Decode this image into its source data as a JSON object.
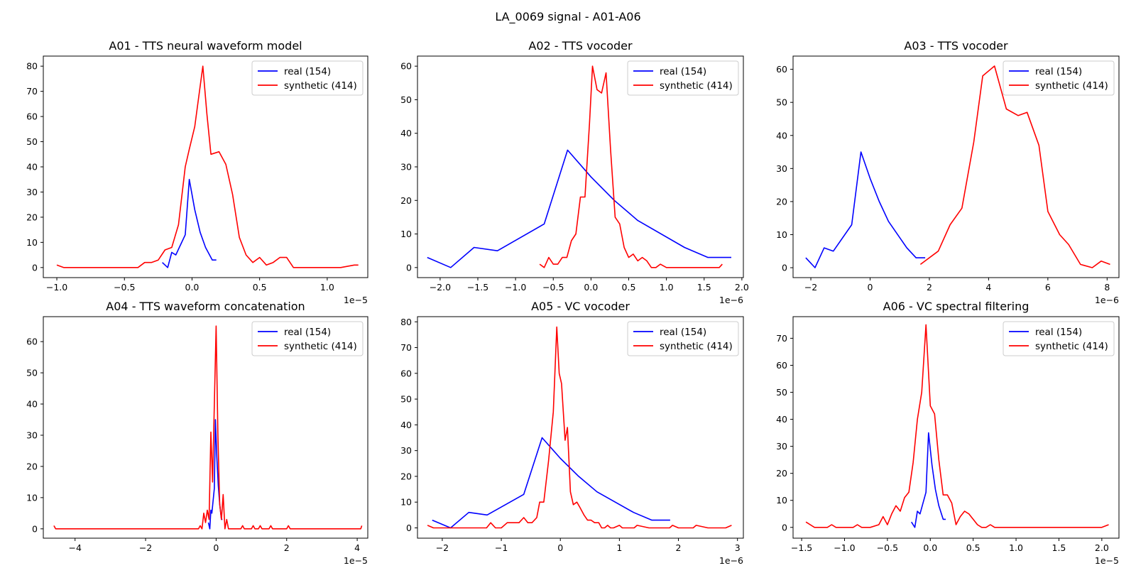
{
  "suptitle": "LA_0069 signal - A01-A06",
  "colors": {
    "real": "#0000ff",
    "synthetic": "#ff0000"
  },
  "chart_data": [
    {
      "type": "line",
      "title": "A01 - TTS neural waveform model",
      "offset_text": "1e−5",
      "xlim": [
        -1.1,
        1.3
      ],
      "ylim": [
        -4,
        84
      ],
      "xticks": [
        -1.0,
        -0.5,
        0.0,
        0.5,
        1.0
      ],
      "xticklabels": [
        "−1.0",
        "−0.5",
        "0.0",
        "0.5",
        "1.0"
      ],
      "yticks": [
        0,
        10,
        20,
        30,
        40,
        50,
        60,
        70,
        80
      ],
      "legend": "upper right",
      "series": [
        {
          "name": "real (154)",
          "color": "#0000ff",
          "x": [
            -0.22,
            -0.18,
            -0.15,
            -0.12,
            -0.05,
            -0.02,
            0.02,
            0.06,
            0.1,
            0.15,
            0.18
          ],
          "y": [
            2,
            0,
            6,
            5,
            13,
            35,
            23,
            14,
            8,
            3,
            3
          ]
        },
        {
          "name": "synthetic (414)",
          "color": "#ff0000",
          "x": [
            -1.0,
            -0.95,
            -0.9,
            -0.8,
            -0.6,
            -0.4,
            -0.35,
            -0.3,
            -0.25,
            -0.2,
            -0.15,
            -0.1,
            -0.05,
            -0.02,
            0.02,
            0.05,
            0.08,
            0.11,
            0.14,
            0.2,
            0.25,
            0.3,
            0.35,
            0.4,
            0.45,
            0.5,
            0.55,
            0.6,
            0.65,
            0.7,
            0.75,
            0.8,
            0.85,
            0.9,
            1.0,
            1.1,
            1.2,
            1.23
          ],
          "y": [
            1,
            0,
            0,
            0,
            0,
            0,
            2,
            2,
            3,
            7,
            8,
            17,
            40,
            47,
            56,
            68,
            80,
            61,
            45,
            46,
            41,
            29,
            12,
            5,
            2,
            4,
            1,
            2,
            4,
            4,
            0,
            0,
            0,
            0,
            0,
            0,
            1,
            1
          ]
        }
      ]
    },
    {
      "type": "line",
      "title": "A02 - TTS vocoder",
      "offset_text": "1e−6",
      "xlim": [
        -2.3,
        2.02
      ],
      "ylim": [
        -3,
        63
      ],
      "xticks": [
        -2.0,
        -1.5,
        -1.0,
        -0.5,
        0.0,
        0.5,
        1.0,
        1.5,
        2.0
      ],
      "xticklabels": [
        "−2.0",
        "−1.5",
        "−1.0",
        "−0.5",
        "0.0",
        "0.5",
        "1.0",
        "1.5",
        "2.0"
      ],
      "yticks": [
        0,
        10,
        20,
        30,
        40,
        50,
        60
      ],
      "legend": "upper right",
      "series": [
        {
          "name": "real (154)",
          "color": "#0000ff",
          "x": [
            -2.17,
            -1.86,
            -1.55,
            -1.24,
            -0.62,
            -0.31,
            0.0,
            0.31,
            0.62,
            1.24,
            1.55,
            1.86
          ],
          "y": [
            3,
            0,
            6,
            5,
            13,
            35,
            27,
            20,
            14,
            6,
            3,
            3
          ]
        },
        {
          "name": "synthetic (414)",
          "color": "#ff0000",
          "x": [
            -0.68,
            -0.62,
            -0.56,
            -0.5,
            -0.44,
            -0.38,
            -0.32,
            -0.26,
            -0.2,
            -0.14,
            -0.08,
            -0.02,
            0.02,
            0.08,
            0.14,
            0.2,
            0.26,
            0.32,
            0.38,
            0.44,
            0.5,
            0.56,
            0.62,
            0.68,
            0.74,
            0.8,
            0.86,
            0.92,
            1.0,
            1.2,
            1.4,
            1.6,
            1.7,
            1.74
          ],
          "y": [
            1,
            0,
            3,
            1,
            1,
            3,
            3,
            8,
            10,
            21,
            21,
            43,
            60,
            53,
            52,
            58,
            35,
            15,
            13,
            6,
            3,
            4,
            2,
            3,
            2,
            0,
            0,
            1,
            0,
            0,
            0,
            0,
            0,
            1
          ]
        }
      ]
    },
    {
      "type": "line",
      "title": "A03 - TTS vocoder",
      "offset_text": "1e−6",
      "xlim": [
        -2.6,
        8.4
      ],
      "ylim": [
        -3,
        64
      ],
      "xticks": [
        -2,
        0,
        2,
        4,
        6,
        8
      ],
      "xticklabels": [
        "−2",
        "0",
        "2",
        "4",
        "6",
        "8"
      ],
      "yticks": [
        0,
        10,
        20,
        30,
        40,
        50,
        60
      ],
      "legend": "upper right",
      "series": [
        {
          "name": "real (154)",
          "color": "#0000ff",
          "x": [
            -2.17,
            -1.86,
            -1.55,
            -1.24,
            -0.62,
            -0.31,
            0.0,
            0.31,
            0.62,
            1.24,
            1.55,
            1.86
          ],
          "y": [
            3,
            0,
            6,
            5,
            13,
            35,
            27,
            20,
            14,
            6,
            3,
            3
          ]
        },
        {
          "name": "synthetic (414)",
          "color": "#ff0000",
          "x": [
            1.7,
            2.3,
            2.7,
            3.1,
            3.5,
            3.8,
            4.2,
            4.6,
            5.0,
            5.3,
            5.7,
            6.0,
            6.4,
            6.7,
            7.1,
            7.5,
            7.8,
            8.1
          ],
          "y": [
            1,
            5,
            13,
            18,
            38,
            58,
            61,
            48,
            46,
            47,
            37,
            17,
            10,
            7,
            1,
            0,
            2,
            1
          ]
        }
      ]
    },
    {
      "type": "line",
      "title": "A04 - TTS waveform concatenation",
      "offset_text": "1e−5",
      "xlim": [
        -4.9,
        4.3
      ],
      "ylim": [
        -3,
        68
      ],
      "xticks": [
        -4,
        -2,
        0,
        2,
        4
      ],
      "xticklabels": [
        "−4",
        "−2",
        "0",
        "2",
        "4"
      ],
      "yticks": [
        0,
        10,
        20,
        30,
        40,
        50,
        60
      ],
      "legend": "upper right",
      "series": [
        {
          "name": "real (154)",
          "color": "#0000ff",
          "x": [
            -0.22,
            -0.18,
            -0.15,
            -0.12,
            -0.05,
            -0.02,
            0.02,
            0.06,
            0.1,
            0.15,
            0.18
          ],
          "y": [
            2,
            0,
            6,
            5,
            13,
            35,
            23,
            14,
            8,
            3,
            3
          ]
        },
        {
          "name": "synthetic (414)",
          "color": "#ff0000",
          "x": [
            -4.6,
            -4.55,
            -4.0,
            -3.0,
            -2.0,
            -1.0,
            -0.5,
            -0.45,
            -0.4,
            -0.35,
            -0.3,
            -0.25,
            -0.2,
            -0.15,
            -0.1,
            -0.05,
            0.0,
            0.05,
            0.1,
            0.15,
            0.2,
            0.25,
            0.3,
            0.35,
            0.4,
            0.5,
            0.7,
            0.75,
            0.8,
            1.0,
            1.05,
            1.1,
            1.2,
            1.25,
            1.3,
            1.5,
            1.55,
            1.6,
            2.0,
            2.05,
            2.1,
            3.0,
            4.0,
            4.1,
            4.13
          ],
          "y": [
            1,
            0,
            0,
            0,
            0,
            0,
            0,
            1,
            0,
            5,
            2,
            6,
            3,
            31,
            15,
            40,
            65,
            30,
            8,
            3,
            11,
            0,
            3,
            0,
            0,
            0,
            0,
            1,
            0,
            0,
            1,
            0,
            0,
            1,
            0,
            0,
            1,
            0,
            0,
            1,
            0,
            0,
            0,
            0,
            1
          ]
        }
      ]
    },
    {
      "type": "line",
      "title": "A05 - VC vocoder",
      "offset_text": "1e−6",
      "xlim": [
        -2.42,
        3.1
      ],
      "ylim": [
        -4,
        82
      ],
      "xticks": [
        -2,
        -1,
        0,
        1,
        2,
        3
      ],
      "xticklabels": [
        "−2",
        "−1",
        "0",
        "1",
        "2",
        "3"
      ],
      "yticks": [
        0,
        10,
        20,
        30,
        40,
        50,
        60,
        70,
        80
      ],
      "legend": "upper right",
      "series": [
        {
          "name": "real (154)",
          "color": "#0000ff",
          "x": [
            -2.17,
            -1.86,
            -1.55,
            -1.24,
            -0.62,
            -0.31,
            0.0,
            0.31,
            0.62,
            1.24,
            1.55,
            1.86
          ],
          "y": [
            3,
            0,
            6,
            5,
            13,
            35,
            27,
            20,
            14,
            6,
            3,
            3
          ]
        },
        {
          "name": "synthetic (414)",
          "color": "#ff0000",
          "x": [
            -2.25,
            -2.15,
            -2.0,
            -1.8,
            -1.6,
            -1.4,
            -1.25,
            -1.18,
            -1.1,
            -1.0,
            -0.9,
            -0.8,
            -0.7,
            -0.62,
            -0.55,
            -0.48,
            -0.4,
            -0.35,
            -0.28,
            -0.2,
            -0.12,
            -0.06,
            -0.02,
            0.02,
            0.08,
            0.12,
            0.17,
            0.22,
            0.28,
            0.33,
            0.4,
            0.46,
            0.52,
            0.58,
            0.65,
            0.7,
            0.75,
            0.8,
            0.85,
            0.9,
            1.0,
            1.05,
            1.1,
            1.2,
            1.25,
            1.3,
            1.5,
            1.6,
            1.8,
            1.85,
            1.9,
            2.0,
            2.2,
            2.25,
            2.3,
            2.5,
            2.8,
            2.9
          ],
          "y": [
            1,
            0,
            0,
            0,
            0,
            0,
            0,
            2,
            0,
            0,
            2,
            2,
            2,
            4,
            2,
            2,
            4,
            10,
            10,
            26,
            45,
            78,
            60,
            56,
            34,
            39,
            14,
            9,
            10,
            8,
            5,
            3,
            3,
            2,
            2,
            0,
            0,
            1,
            0,
            0,
            1,
            0,
            0,
            0,
            0,
            1,
            0,
            0,
            0,
            0,
            1,
            0,
            0,
            0,
            1,
            0,
            0,
            1
          ]
        }
      ]
    },
    {
      "type": "line",
      "title": "A06 - VC spectral filtering",
      "offset_text": "1e−5",
      "xlim": [
        -1.6,
        2.2
      ],
      "ylim": [
        -4,
        78
      ],
      "xticks": [
        -1.5,
        -1.0,
        -0.5,
        0.0,
        0.5,
        1.0,
        1.5,
        2.0
      ],
      "xticklabels": [
        "−1.5",
        "−1.0",
        "−0.5",
        "0.0",
        "0.5",
        "1.0",
        "1.5",
        "2.0"
      ],
      "yticks": [
        0,
        10,
        20,
        30,
        40,
        50,
        60,
        70
      ],
      "legend": "upper right",
      "series": [
        {
          "name": "real (154)",
          "color": "#0000ff",
          "x": [
            -0.22,
            -0.18,
            -0.15,
            -0.12,
            -0.05,
            -0.02,
            0.02,
            0.06,
            0.1,
            0.15,
            0.18
          ],
          "y": [
            2,
            0,
            6,
            5,
            13,
            35,
            23,
            14,
            8,
            3,
            3
          ]
        },
        {
          "name": "synthetic (414)",
          "color": "#ff0000",
          "x": [
            -1.45,
            -1.35,
            -1.3,
            -1.2,
            -1.15,
            -1.1,
            -1.0,
            -0.9,
            -0.85,
            -0.8,
            -0.75,
            -0.7,
            -0.6,
            -0.55,
            -0.5,
            -0.45,
            -0.4,
            -0.35,
            -0.3,
            -0.25,
            -0.2,
            -0.15,
            -0.1,
            -0.05,
            0.0,
            0.05,
            0.1,
            0.15,
            0.2,
            0.25,
            0.3,
            0.35,
            0.4,
            0.45,
            0.5,
            0.55,
            0.6,
            0.65,
            0.7,
            0.75,
            0.8,
            0.85,
            1.0,
            1.5,
            2.0,
            2.08
          ],
          "y": [
            2,
            0,
            0,
            0,
            1,
            0,
            0,
            0,
            1,
            0,
            0,
            0,
            1,
            4,
            1,
            5,
            8,
            6,
            11,
            13,
            24,
            40,
            50,
            75,
            45,
            42,
            25,
            12,
            12,
            9,
            1,
            4,
            6,
            5,
            3,
            1,
            0,
            0,
            1,
            0,
            0,
            0,
            0,
            0,
            0,
            1
          ]
        }
      ]
    }
  ]
}
